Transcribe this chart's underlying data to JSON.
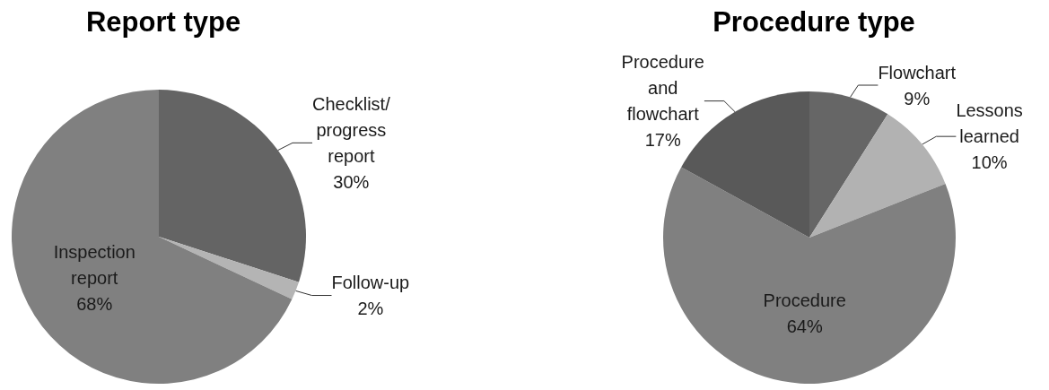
{
  "chart_data": [
    {
      "type": "pie",
      "title": "Report type",
      "categories": [
        "Checklist/progress report",
        "Follow-up",
        "Inspection report"
      ],
      "values": [
        30,
        2,
        68
      ],
      "value_labels": [
        "30%",
        "2%",
        "68%"
      ],
      "colors": [
        "#646464",
        "#b4b4b4",
        "#808080"
      ]
    },
    {
      "type": "pie",
      "title": "Procedure type",
      "categories": [
        "Flowchart",
        "Lessons learned",
        "Procedure",
        "Procedure and flowchart"
      ],
      "values": [
        9,
        10,
        64,
        17
      ],
      "value_labels": [
        "9%",
        "10%",
        "64%",
        "17%"
      ],
      "colors": [
        "#666666",
        "#b2b2b2",
        "#808080",
        "#595959"
      ]
    }
  ]
}
